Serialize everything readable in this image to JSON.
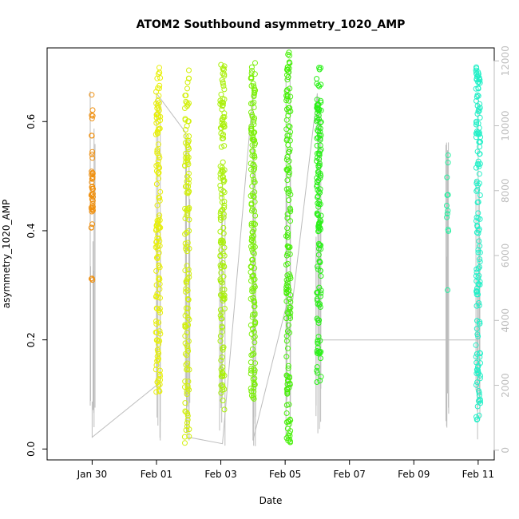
{
  "chart_data": {
    "type": "scatter",
    "title": "ATOM2 Southbound asymmetry_1020_AMP",
    "xlabel": "Date",
    "ylabel": "asymmetry_1020_AMP",
    "x_ticks": [
      "Jan 30",
      "Feb 01",
      "Feb 03",
      "Feb 05",
      "Feb 07",
      "Feb 09",
      "Feb 11"
    ],
    "x_tick_values": [
      30,
      32,
      34,
      36,
      38,
      40,
      42
    ],
    "xlim": [
      28.6,
      42.5
    ],
    "ylim": [
      -0.02,
      0.735
    ],
    "y_ticks": [
      0.0,
      0.2,
      0.4,
      0.6
    ],
    "y_tick_labels": [
      "0.0",
      "0.2",
      "0.4",
      "0.6"
    ],
    "y2_label": "",
    "y2_ticks": [
      0,
      2000,
      4000,
      6000,
      8000,
      10000,
      12000
    ],
    "y2lim": [
      -300,
      12400
    ],
    "series_colors": [
      "#f0900f",
      "#e8f00a",
      "#bff00a",
      "#66f00a",
      "#22f018",
      "#25f05a",
      "#25f0c8"
    ],
    "overlay_line_color": "#bdbdbd",
    "groups": [
      {
        "date": 30.0,
        "y_range": [
          0.3,
          0.69
        ],
        "count": 45,
        "color": "#f0900f"
      },
      {
        "date": 32.05,
        "y_range": [
          0.1,
          0.7
        ],
        "count": 140,
        "color": "#e8f00a"
      },
      {
        "date": 32.95,
        "y_range": [
          0.01,
          0.7
        ],
        "count": 130,
        "color": "#d2f00a"
      },
      {
        "date": 34.05,
        "y_range": [
          0.07,
          0.72
        ],
        "count": 150,
        "color": "#aaf00a"
      },
      {
        "date": 35.0,
        "y_range": [
          0.09,
          0.71
        ],
        "count": 170,
        "color": "#7cf00a"
      },
      {
        "date": 36.1,
        "y_range": [
          0.01,
          0.73
        ],
        "count": 160,
        "color": "#48f00a"
      },
      {
        "date": 37.05,
        "y_range": [
          0.11,
          0.7
        ],
        "count": 150,
        "color": "#2af018"
      },
      {
        "date": 41.05,
        "y_range": [
          0.21,
          0.54
        ],
        "count": 12,
        "color": "#25f0a0"
      },
      {
        "date": 42.0,
        "y_range": [
          0.05,
          0.7
        ],
        "count": 150,
        "color": "#25f0c8"
      }
    ],
    "overlay_path_dates": [
      30.0,
      30.0,
      32.0,
      32.0,
      32.9,
      32.95,
      33.0,
      34.05,
      35.0,
      35.0,
      36.05,
      36.1,
      37.0,
      37.05,
      41.0,
      42.0,
      42.0
    ],
    "overlay_path_values": [
      1500,
      400,
      2000,
      11000,
      9800,
      400,
      400,
      200,
      11000,
      300,
      4500,
      3500,
      11000,
      3400,
      3400,
      3400,
      11000
    ]
  }
}
